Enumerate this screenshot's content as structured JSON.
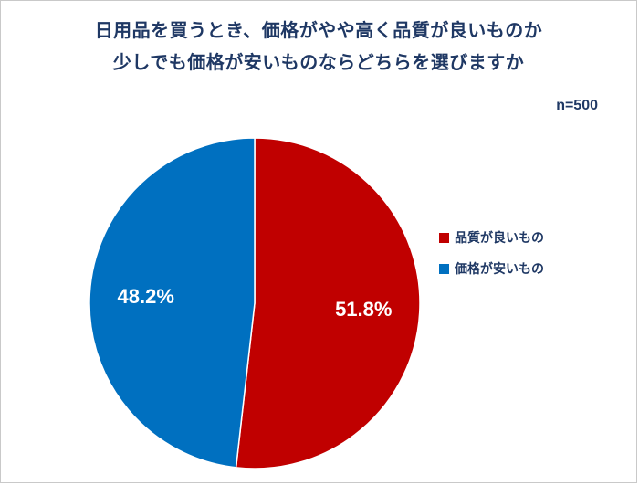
{
  "frame": {
    "background": "#FFFFFF",
    "border_color": "#C9C9C9"
  },
  "title": {
    "line1": "日用品を買うとき、価格がやや高く品質が良いものか",
    "line2": "少しでも価格が安いものならどちらを選びますか",
    "color": "#1F3864"
  },
  "sample_size": {
    "text": "n=500",
    "color": "#1F3864"
  },
  "chart_data": {
    "type": "pie",
    "title": "日用品を買うとき、価格がやや高く品質が良いものか少しでも価格が安いものならどちらを選びますか",
    "sample_size_label": "n=500",
    "start_angle_deg": 0,
    "direction": "clockwise",
    "legend_position": "right",
    "data_label_color": "#FFFFFF",
    "slice_border_color": "#FFFFFF",
    "slices": [
      {
        "label": "品質が良いもの",
        "value": 51.8,
        "display": "51.8%",
        "color": "#C00000"
      },
      {
        "label": "価格が安いもの",
        "value": 48.2,
        "display": "48.2%",
        "color": "#0070C0"
      }
    ]
  }
}
